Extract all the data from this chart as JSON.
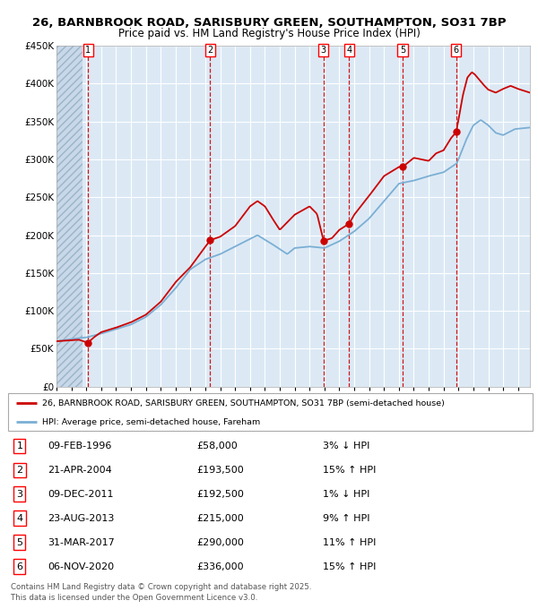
{
  "title_line1": "26, BARNBROOK ROAD, SARISBURY GREEN, SOUTHAMPTON, SO31 7BP",
  "title_line2": "Price paid vs. HM Land Registry's House Price Index (HPI)",
  "bg_color": "#dce9f5",
  "red_line_color": "#cc0000",
  "blue_line_color": "#7bafd4",
  "vline_color_red": "#cc0000",
  "sale_dates": [
    1996.11,
    2004.31,
    2011.94,
    2013.65,
    2017.25,
    2020.85
  ],
  "sale_prices": [
    58000,
    193500,
    192500,
    215000,
    290000,
    336000
  ],
  "sale_labels": [
    "1",
    "2",
    "3",
    "4",
    "5",
    "6"
  ],
  "sale_info": [
    {
      "num": "1",
      "date": "09-FEB-1996",
      "price": "£58,000",
      "pct": "3%",
      "dir": "↓",
      "rel": "HPI"
    },
    {
      "num": "2",
      "date": "21-APR-2004",
      "price": "£193,500",
      "pct": "15%",
      "dir": "↑",
      "rel": "HPI"
    },
    {
      "num": "3",
      "date": "09-DEC-2011",
      "price": "£192,500",
      "pct": "1%",
      "dir": "↓",
      "rel": "HPI"
    },
    {
      "num": "4",
      "date": "23-AUG-2013",
      "price": "£215,000",
      "pct": "9%",
      "dir": "↑",
      "rel": "HPI"
    },
    {
      "num": "5",
      "date": "31-MAR-2017",
      "price": "£290,000",
      "pct": "11%",
      "dir": "↑",
      "rel": "HPI"
    },
    {
      "num": "6",
      "date": "06-NOV-2020",
      "price": "£336,000",
      "pct": "15%",
      "dir": "↑",
      "rel": "HPI"
    }
  ],
  "legend_red": "26, BARNBROOK ROAD, SARISBURY GREEN, SOUTHAMPTON, SO31 7BP (semi-detached house)",
  "legend_blue": "HPI: Average price, semi-detached house, Fareham",
  "footer": "Contains HM Land Registry data © Crown copyright and database right 2025.\nThis data is licensed under the Open Government Licence v3.0.",
  "ylim": [
    0,
    450000
  ],
  "yticks": [
    0,
    50000,
    100000,
    150000,
    200000,
    250000,
    300000,
    350000,
    400000,
    450000
  ],
  "xlim_start": 1994.0,
  "xlim_end": 2025.8
}
